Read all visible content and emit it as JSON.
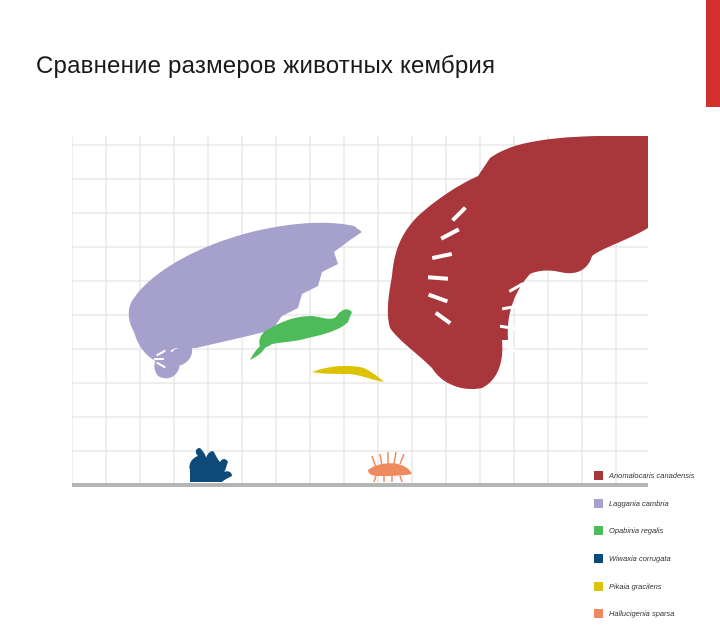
{
  "slide": {
    "title": "Сравнение размеров животных кембрия",
    "accent_color": "#d32f2f"
  },
  "figure": {
    "grid_color": "#dcdcdc",
    "ground_color": "#b5b5b5",
    "animals": [
      {
        "id": "anomalocaris",
        "label": "Anomalocaris canadensis",
        "color": "#a8363b"
      },
      {
        "id": "laggania",
        "label": "Laggania cambria",
        "color": "#a5a0cc"
      },
      {
        "id": "opabinia",
        "label": "Opabinia regalis",
        "color": "#4dbb5a"
      },
      {
        "id": "wiwaxia",
        "label": "Wiwaxia corrugata",
        "color": "#0d4a7a"
      },
      {
        "id": "pikaia",
        "label": "Pikaia gracilens",
        "color": "#dcc200"
      },
      {
        "id": "hallucigenia",
        "label": "Hallucigenia sparsa",
        "color": "#ef8a5e"
      }
    ]
  }
}
